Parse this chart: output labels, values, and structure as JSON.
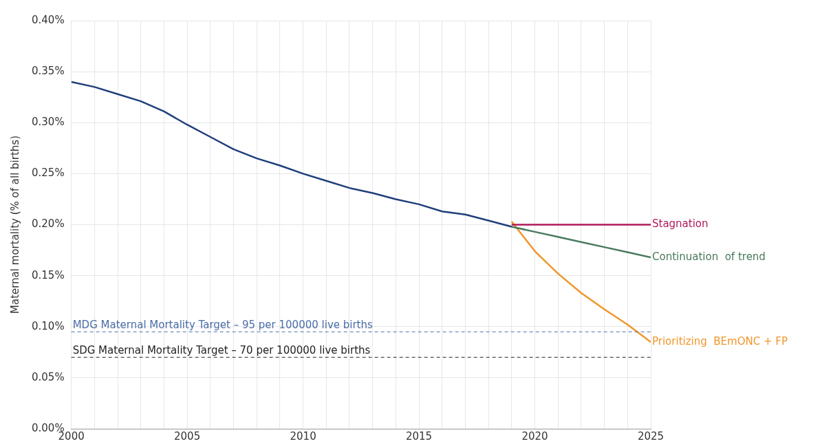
{
  "chart_data": {
    "type": "line",
    "ylabel": "Maternal mortality (% of all births)",
    "xlim": [
      2000,
      2025
    ],
    "xticks": [
      2000,
      {
        "value": 2001,
        "label": null
      },
      {
        "value": 2002,
        "label": null
      },
      {
        "value": 2003,
        "label": null
      },
      {
        "value": 2004,
        "label": null
      },
      2005,
      {
        "value": 2006,
        "label": null
      },
      {
        "value": 2007,
        "label": null
      },
      {
        "value": 2008,
        "label": null
      },
      {
        "value": 2009,
        "label": null
      },
      2010,
      {
        "value": 2011,
        "label": null
      },
      {
        "value": 2012,
        "label": null
      },
      {
        "value": 2013,
        "label": null
      },
      {
        "value": 2014,
        "label": null
      },
      2015,
      {
        "value": 2016,
        "label": null
      },
      {
        "value": 2017,
        "label": null
      },
      {
        "value": 2018,
        "label": null
      },
      {
        "value": 2019,
        "label": null
      },
      2020,
      {
        "value": 2021,
        "label": null
      },
      {
        "value": 2022,
        "label": null
      },
      {
        "value": 2023,
        "label": null
      },
      {
        "value": 2024,
        "label": null
      },
      2025
    ],
    "ylim": [
      0,
      0.4
    ],
    "yticks": [
      {
        "value": 0,
        "label": "0.00%"
      },
      {
        "value": 0.05,
        "label": "0.05%"
      },
      {
        "value": 0.1,
        "label": "0.10%"
      },
      {
        "value": 0.15,
        "label": "0.15%"
      },
      {
        "value": 0.2,
        "label": "0.20%"
      },
      {
        "value": 0.25,
        "label": "0.25%"
      },
      {
        "value": 0.3,
        "label": "0.30%"
      },
      {
        "value": 0.35,
        "label": "0.35%"
      },
      {
        "value": 0.4,
        "label": "0.40%"
      }
    ],
    "grid": true,
    "legend": false,
    "marker": "none",
    "line_style": "solid",
    "series": [
      {
        "color": "#1f3f7a",
        "x": [
          2000,
          2001,
          2002,
          2003,
          2004,
          2005,
          2006,
          2007,
          2008,
          2009,
          2010,
          2011,
          2012,
          2013,
          2014,
          2015,
          2016,
          2017,
          2018,
          2019
        ],
        "values": [
          0.34,
          0.335,
          0.328,
          0.321,
          0.311,
          0.298,
          0.286,
          0.274,
          0.265,
          0.258,
          0.25,
          0.243,
          0.236,
          0.231,
          0.225,
          0.22,
          0.213,
          0.21,
          0.204,
          0.198
        ]
      },
      {
        "name": "Stagnation",
        "color": "#b0185a",
        "x": [
          2019,
          2025
        ],
        "values": [
          0.2,
          0.2
        ]
      },
      {
        "name": "Continuation  of trend",
        "color": "#4a7a5f",
        "x": [
          2019,
          2020,
          2021,
          2022,
          2023,
          2024,
          2025
        ],
        "values": [
          0.198,
          0.193,
          0.188,
          0.183,
          0.178,
          0.173,
          0.168
        ]
      },
      {
        "name": "Prioritizing  BEmONC + FP",
        "color": "#f0962a",
        "x": [
          2019,
          2020,
          2021,
          2022,
          2023,
          2024,
          2025
        ],
        "values": [
          0.203,
          0.174,
          0.152,
          0.133,
          0.117,
          0.102,
          0.085
        ]
      }
    ],
    "ref_lines": [
      {
        "axis": "y",
        "value": 0.095,
        "label": "MDG Maternal Mortality Target – 95 per 100000 live births",
        "color": "#4a6ea8",
        "line_style": "dashed"
      },
      {
        "axis": "y",
        "value": 0.07,
        "label": "SDG Maternal Mortality Target – 70 per 100000 live births",
        "color": "#222222",
        "line_style": "dashed"
      }
    ]
  }
}
